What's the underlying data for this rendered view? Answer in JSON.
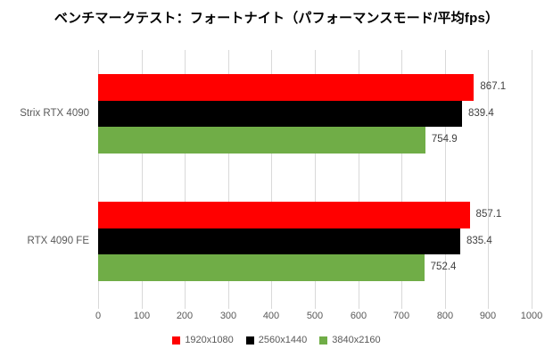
{
  "chart_data": {
    "type": "bar",
    "orientation": "horizontal",
    "title": "ベンチマークテスト：フォートナイト（パフォーマンスモード/平均fps）",
    "categories": [
      "Strix RTX 4090",
      "RTX 4090 FE"
    ],
    "series": [
      {
        "name": "1920x1080",
        "color": "#ff0000",
        "values": [
          867.1,
          857.1
        ]
      },
      {
        "name": "2560x1440",
        "color": "#000000",
        "values": [
          839.4,
          835.4
        ]
      },
      {
        "name": "3840x2160",
        "color": "#70ad47",
        "values": [
          754.9,
          752.4
        ]
      }
    ],
    "xlabel": "",
    "ylabel": "",
    "xlim": [
      0,
      1000
    ],
    "x_ticks": [
      0,
      100,
      200,
      300,
      400,
      500,
      600,
      700,
      800,
      900,
      1000
    ],
    "grid": true,
    "data_labels": true,
    "legend_position": "bottom"
  },
  "colors": {
    "background": "#ffffff",
    "title_text": "#000000",
    "gridline": "#d9d9d9",
    "tick_mark": "#d9d9d9",
    "axis_text": "#595959",
    "category_text": "#595959",
    "data_label_text": "#404040"
  }
}
